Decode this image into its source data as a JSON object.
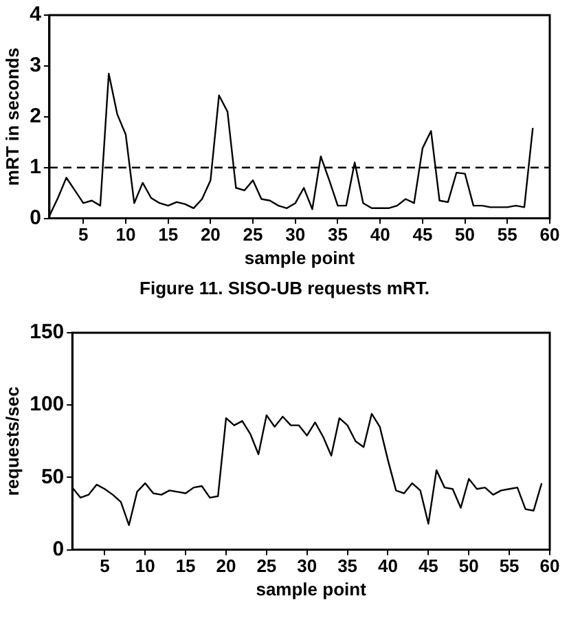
{
  "chart_data": [
    {
      "type": "line",
      "xlabel": "sample point",
      "ylabel": "mRT in seconds",
      "x": [
        1,
        2,
        3,
        4,
        5,
        6,
        7,
        8,
        9,
        10,
        11,
        12,
        13,
        14,
        15,
        16,
        17,
        18,
        19,
        20,
        21,
        22,
        23,
        24,
        25,
        26,
        27,
        28,
        29,
        30,
        31,
        32,
        33,
        34,
        35,
        36,
        37,
        38,
        39,
        40,
        41,
        42,
        43,
        44,
        45,
        46,
        47,
        48,
        49,
        50,
        51,
        52,
        53,
        54,
        55,
        56,
        57,
        58
      ],
      "series": [
        {
          "color": "#000000",
          "values": [
            0.05,
            0.4,
            0.8,
            0.55,
            0.3,
            0.35,
            0.25,
            2.85,
            2.05,
            1.65,
            0.3,
            0.7,
            0.4,
            0.3,
            0.25,
            0.32,
            0.28,
            0.2,
            0.38,
            0.75,
            2.42,
            2.1,
            0.6,
            0.55,
            0.75,
            0.38,
            0.35,
            0.25,
            0.2,
            0.3,
            0.6,
            0.18,
            1.22,
            0.75,
            0.25,
            0.25,
            1.1,
            0.3,
            0.2,
            0.2,
            0.2,
            0.25,
            0.38,
            0.3,
            1.38,
            1.72,
            0.35,
            0.32,
            0.9,
            0.88,
            0.25,
            0.25,
            0.22,
            0.22,
            0.22,
            0.25,
            0.22,
            1.78
          ]
        }
      ],
      "xlim": [
        1,
        60
      ],
      "xticks": [
        5,
        10,
        15,
        20,
        25,
        30,
        35,
        40,
        45,
        50,
        55,
        60
      ],
      "ylim": [
        0,
        4
      ],
      "yticks": [
        0,
        1,
        2,
        3,
        4
      ],
      "ref_lines": [
        {
          "axis": "y",
          "value": 1,
          "color": "#000000",
          "line_style": "dashed"
        }
      ],
      "grid": false,
      "legend": false,
      "marker": "none",
      "line_style": "solid",
      "annotations": [
        "Figure 11. SISO-UB requests mRT."
      ]
    },
    {
      "type": "line",
      "xlabel": "sample point",
      "ylabel": "requests/sec",
      "x": [
        1,
        2,
        3,
        4,
        5,
        6,
        7,
        8,
        9,
        10,
        11,
        12,
        13,
        14,
        15,
        16,
        17,
        18,
        19,
        20,
        21,
        22,
        23,
        24,
        25,
        26,
        27,
        28,
        29,
        30,
        31,
        32,
        33,
        34,
        35,
        36,
        37,
        38,
        39,
        40,
        41,
        42,
        43,
        44,
        45,
        46,
        47,
        48,
        49,
        50,
        51,
        52,
        53,
        54,
        55,
        56,
        57,
        58,
        59
      ],
      "series": [
        {
          "color": "#000000",
          "values": [
            43,
            36,
            38,
            45,
            42,
            38,
            33,
            17,
            40,
            46,
            39,
            38,
            41,
            40,
            39,
            43,
            44,
            36,
            37,
            91,
            86,
            89,
            80,
            66,
            93,
            85,
            92,
            86,
            86,
            79,
            88,
            78,
            65,
            91,
            86,
            75,
            71,
            94,
            85,
            62,
            41,
            39,
            46,
            41,
            18,
            55,
            43,
            42,
            29,
            49,
            42,
            43,
            38,
            41,
            42,
            43,
            28,
            27,
            46
          ]
        }
      ],
      "xlim": [
        1,
        60
      ],
      "xticks": [
        5,
        10,
        15,
        20,
        25,
        30,
        35,
        40,
        45,
        50,
        55,
        60
      ],
      "ylim": [
        0,
        150
      ],
      "yticks": [
        0,
        50,
        100,
        150
      ],
      "grid": false,
      "legend": false,
      "marker": "none",
      "line_style": "solid"
    }
  ]
}
